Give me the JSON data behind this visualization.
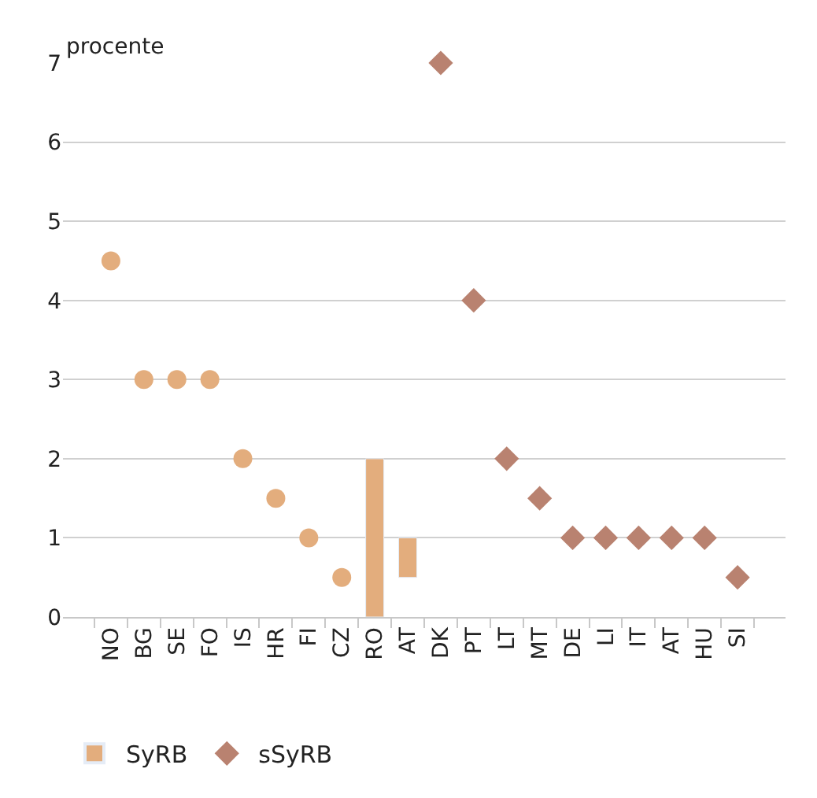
{
  "chart_data": {
    "type": "scatter",
    "ylabel": "procente",
    "categories": [
      "NO",
      "BG",
      "SE",
      "FO",
      "IS",
      "HR",
      "FI",
      "CZ",
      "RO",
      "AT",
      "DK",
      "PT",
      "LT",
      "MT",
      "DE",
      "LI",
      "IT",
      "AT",
      "HU",
      "SI"
    ],
    "series": [
      {
        "type": "bar",
        "name": "SyRB",
        "color": "#e3ad7d",
        "values": [
          null,
          null,
          null,
          null,
          null,
          null,
          null,
          null,
          2,
          0.5,
          null,
          null,
          null,
          null,
          null,
          null,
          null,
          null,
          null,
          null
        ],
        "base": [
          null,
          null,
          null,
          null,
          null,
          null,
          null,
          null,
          0,
          0.5,
          null,
          null,
          null,
          null,
          null,
          null,
          null,
          null,
          null,
          null
        ]
      },
      {
        "color": "#e3ad7d",
        "marker": "circle",
        "values": [
          4.5,
          3,
          3,
          3,
          2,
          1.5,
          1,
          0.5,
          null,
          null,
          null,
          null,
          null,
          null,
          null,
          null,
          null,
          null,
          null,
          null
        ]
      },
      {
        "name": "sSyRB",
        "color": "#b98270",
        "marker": "diamond",
        "values": [
          null,
          null,
          null,
          null,
          null,
          null,
          null,
          null,
          null,
          null,
          7,
          4,
          2,
          1.5,
          1,
          1,
          1,
          1,
          1,
          0.5
        ]
      }
    ],
    "ylim": [
      0,
      7
    ],
    "yticks": [
      0,
      1,
      2,
      3,
      4,
      5,
      6,
      7
    ],
    "grid": "y",
    "legend": "bottom left"
  }
}
